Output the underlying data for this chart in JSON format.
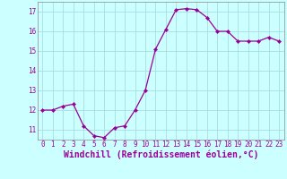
{
  "x": [
    0,
    1,
    2,
    3,
    4,
    5,
    6,
    7,
    8,
    9,
    10,
    11,
    12,
    13,
    14,
    15,
    16,
    17,
    18,
    19,
    20,
    21,
    22,
    23
  ],
  "y": [
    12.0,
    12.0,
    12.2,
    12.3,
    11.2,
    10.7,
    10.6,
    11.1,
    11.2,
    12.0,
    13.0,
    15.1,
    16.1,
    17.1,
    17.15,
    17.1,
    16.7,
    16.0,
    16.0,
    15.5,
    15.5,
    15.5,
    15.7,
    15.5
  ],
  "line_color": "#990099",
  "marker": "D",
  "markersize": 2.2,
  "bg_color": "#ccffff",
  "grid_color": "#aadddd",
  "xlabel": "Windchill (Refroidissement éolien,°C)",
  "ylim": [
    10.5,
    17.5
  ],
  "xlim": [
    -0.5,
    23.5
  ],
  "yticks": [
    11,
    12,
    13,
    14,
    15,
    16,
    17
  ],
  "xticks": [
    0,
    1,
    2,
    3,
    4,
    5,
    6,
    7,
    8,
    9,
    10,
    11,
    12,
    13,
    14,
    15,
    16,
    17,
    18,
    19,
    20,
    21,
    22,
    23
  ],
  "tick_color": "#990099",
  "label_color": "#990099",
  "tick_fontsize": 5.5,
  "xlabel_fontsize": 7.0,
  "linewidth": 0.9
}
